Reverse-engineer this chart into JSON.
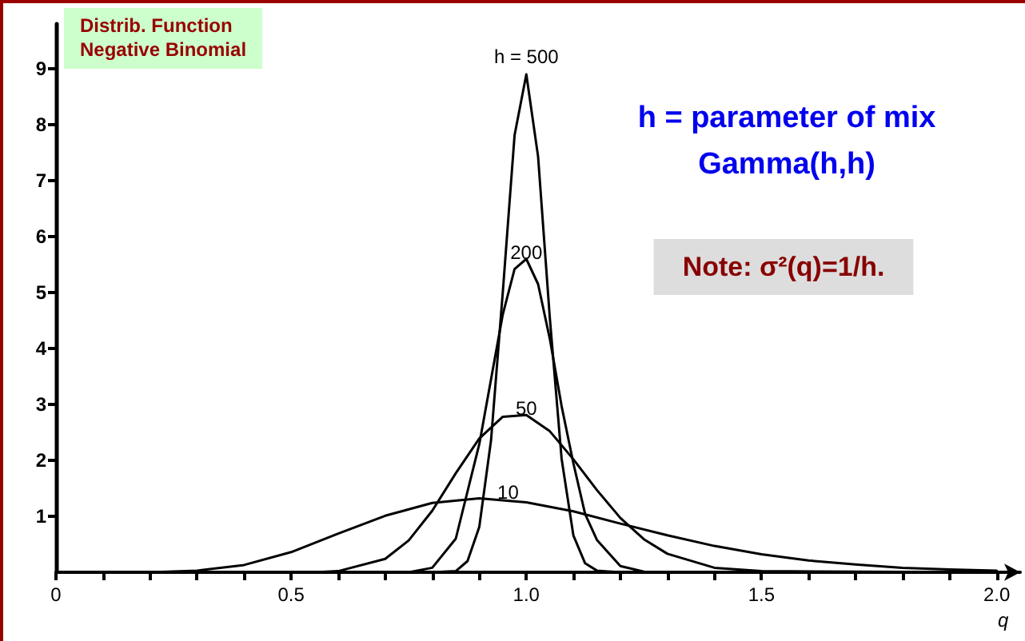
{
  "chart_data": {
    "type": "line",
    "title": "Distrib. Function",
    "subtitle": "Negative Binomial",
    "xlabel": "q",
    "annotations": [
      "h = parameter of mix",
      "Gamma(h,h)",
      "Note: σ²(q)=1/h."
    ],
    "series": [
      {
        "name": "h = 500",
        "color": "#000000",
        "x": [
          0.8,
          0.85,
          0.875,
          0.9,
          0.925,
          0.95,
          0.975,
          1.0,
          1.025,
          1.05,
          1.075,
          1.1,
          1.125,
          1.15,
          1.2
        ],
        "values": [
          0,
          0.02,
          0.2,
          0.81,
          2.36,
          5.01,
          7.81,
          8.9,
          7.43,
          4.54,
          2.03,
          0.66,
          0.16,
          0.03,
          0
        ]
      },
      {
        "name": "200",
        "color": "#000000",
        "x": [
          0.75,
          0.8,
          0.85,
          0.9,
          0.925,
          0.95,
          0.975,
          1.0,
          1.025,
          1.05,
          1.075,
          1.1,
          1.125,
          1.15,
          1.2,
          1.25
        ],
        "values": [
          0,
          0.08,
          0.6,
          2.29,
          3.45,
          4.61,
          5.42,
          5.6,
          5.15,
          4.17,
          2.97,
          1.95,
          1.04,
          0.58,
          0.11,
          0.01
        ]
      },
      {
        "name": "50",
        "color": "#000000",
        "x": [
          0.55,
          0.6,
          0.7,
          0.75,
          0.8,
          0.85,
          0.9,
          0.95,
          1.0,
          1.05,
          1.1,
          1.15,
          1.2,
          1.25,
          1.3,
          1.4,
          1.5,
          2.0
        ],
        "values": [
          0,
          0.02,
          0.24,
          0.57,
          1.1,
          1.77,
          2.39,
          2.78,
          2.81,
          2.52,
          2.02,
          1.47,
          0.97,
          0.59,
          0.33,
          0.08,
          0.02,
          0
        ]
      },
      {
        "name": "10",
        "color": "#000000",
        "x": [
          0.2,
          0.3,
          0.4,
          0.5,
          0.6,
          0.7,
          0.8,
          0.9,
          1.0,
          1.1,
          1.2,
          1.3,
          1.4,
          1.5,
          1.6,
          1.7,
          1.8,
          1.9,
          2.0
        ],
        "values": [
          0,
          0.03,
          0.13,
          0.36,
          0.69,
          1.01,
          1.24,
          1.32,
          1.25,
          1.09,
          0.87,
          0.66,
          0.47,
          0.32,
          0.21,
          0.14,
          0.08,
          0.05,
          0.03
        ]
      }
    ],
    "xlim": [
      0,
      2.05
    ],
    "xticks": [
      0,
      {
        "value": 0.1,
        "label": null
      },
      {
        "value": 0.2,
        "label": null
      },
      {
        "value": 0.3,
        "label": null
      },
      {
        "value": 0.4,
        "label": null
      },
      0.5,
      {
        "value": 0.6,
        "label": null
      },
      {
        "value": 0.7,
        "label": null
      },
      {
        "value": 0.8,
        "label": null
      },
      {
        "value": 0.9,
        "label": null
      },
      {
        "value": 1,
        "label": "1.0"
      },
      {
        "value": 1.1,
        "label": null
      },
      {
        "value": 1.2,
        "label": null
      },
      {
        "value": 1.3,
        "label": null
      },
      {
        "value": 1.4,
        "label": null
      },
      1.5,
      {
        "value": 1.6,
        "label": null
      },
      {
        "value": 1.7,
        "label": null
      },
      {
        "value": 1.8,
        "label": null
      },
      {
        "value": 1.9,
        "label": null
      },
      {
        "value": 2,
        "label": "2.0"
      }
    ],
    "ylim": [
      0,
      9.8
    ],
    "yticks": [
      1,
      2,
      3,
      4,
      5,
      6,
      7,
      8,
      9
    ],
    "grid": false,
    "legend": false,
    "marker": "none",
    "line_style": "solid"
  }
}
